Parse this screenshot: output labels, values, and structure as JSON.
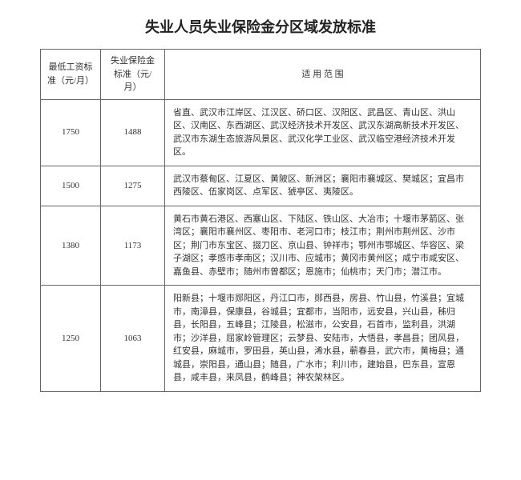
{
  "title": "失业人员失业保险金分区域发放标准",
  "columns": {
    "wage": "最低工资标准（元/月）",
    "benefit": "失业保险金标准（元/月）",
    "scope": "适 用 范 围"
  },
  "rows": [
    {
      "wage": "1750",
      "benefit": "1488",
      "scope": "省直、武汉市江岸区、江汉区、硚口区、汉阳区、武昌区、青山区、洪山区、汉南区、东西湖区、武汉经济技术开发区、武汉东湖高新技术开发区、武汉市东湖生态旅游风景区、武汉化学工业区、武汉临空港经济技术开发区。"
    },
    {
      "wage": "1500",
      "benefit": "1275",
      "scope": "武汉市蔡甸区、江夏区、黄陂区、新洲区；襄阳市襄城区、樊城区；宜昌市西陵区、伍家岗区、点军区、猇亭区、夷陵区。"
    },
    {
      "wage": "1380",
      "benefit": "1173",
      "scope": "黄石市黄石港区、西塞山区、下陆区、铁山区、大冶市；十堰市茅箭区、张湾区；襄阳市襄州区、枣阳市、老河口市；枝江市；荆州市荆州区、沙市区；荆门市东宝区、掇刀区、京山县、钟祥市；鄂州市鄂城区、华容区、梁子湖区；孝感市孝南区；汉川市、应城市；黄冈市黄州区；咸宁市咸安区、嘉鱼县、赤壁市；随州市曾都区；恩施市；仙桃市；天门市；潜江市。"
    },
    {
      "wage": "1250",
      "benefit": "1063",
      "scope": "阳新县；十堰市郧阳区，丹江口市，郧西县，房县、竹山县，竹溪县；宜城市，南漳县，保康县，谷城县；宜都市，当阳市，远安县，兴山县，秭归县，长阳县，五峰县；江陵县，松滋市，公安县，石首市，监利县，洪湖市；沙洋县，屈家岭管理区；云梦县、安陆市，大悟县，孝昌县；团风县，红安县，麻城市，罗田县，英山县，浠水县，蕲春县，武穴市，黄梅县；通城县，崇阳县，通山县；随县，广水市；利川市，建始县，巴东县，宣恩县，咸丰县，来凤县，鹤峰县；神农架林区。"
    }
  ]
}
